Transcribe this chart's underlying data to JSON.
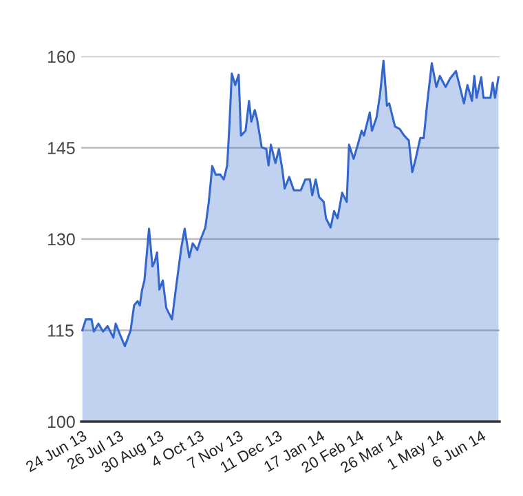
{
  "chart_data": {
    "type": "area",
    "x": [
      "2013-06-24",
      "2013-06-27",
      "2013-07-02",
      "2013-07-04",
      "2013-07-08",
      "2013-07-12",
      "2013-07-16",
      "2013-07-21",
      "2013-07-23",
      "2013-07-27",
      "2013-07-31",
      "2013-08-05",
      "2013-08-08",
      "2013-08-11",
      "2013-08-13",
      "2013-08-15",
      "2013-08-17",
      "2013-08-21",
      "2013-08-24",
      "2013-08-26",
      "2013-08-28",
      "2013-08-30",
      "2013-09-02",
      "2013-09-05",
      "2013-09-10",
      "2013-09-13",
      "2013-09-18",
      "2013-09-21",
      "2013-09-25",
      "2013-09-28",
      "2013-10-02",
      "2013-10-05",
      "2013-10-09",
      "2013-10-12",
      "2013-10-15",
      "2013-10-18",
      "2013-10-22",
      "2013-10-25",
      "2013-10-28",
      "2013-10-30",
      "2013-11-01",
      "2013-11-04",
      "2013-11-07",
      "2013-11-09",
      "2013-11-13",
      "2013-11-16",
      "2013-11-18",
      "2013-11-21",
      "2013-11-23",
      "2013-11-27",
      "2013-12-01",
      "2013-12-03",
      "2013-12-05",
      "2013-12-09",
      "2013-12-12",
      "2013-12-15",
      "2013-12-17",
      "2013-12-21",
      "2013-12-25",
      "2013-12-31",
      "2014-01-04",
      "2014-01-08",
      "2014-01-10",
      "2014-01-13",
      "2014-01-16",
      "2014-01-20",
      "2014-01-22",
      "2014-01-26",
      "2014-01-29",
      "2014-02-01",
      "2014-02-05",
      "2014-02-09",
      "2014-02-11",
      "2014-02-15",
      "2014-02-18",
      "2014-02-22",
      "2014-02-24",
      "2014-03-01",
      "2014-03-03",
      "2014-03-07",
      "2014-03-10",
      "2014-03-13",
      "2014-03-16",
      "2014-03-18",
      "2014-03-23",
      "2014-03-27",
      "2014-03-31",
      "2014-04-04",
      "2014-04-07",
      "2014-04-10",
      "2014-04-14",
      "2014-04-17",
      "2014-04-20",
      "2014-04-24",
      "2014-04-28",
      "2014-05-01",
      "2014-05-06",
      "2014-05-10",
      "2014-05-15",
      "2014-05-19",
      "2014-05-22",
      "2014-05-25",
      "2014-05-29",
      "2014-05-31",
      "2014-06-02",
      "2014-06-06",
      "2014-06-08",
      "2014-06-14",
      "2014-06-16",
      "2014-06-18",
      "2014-06-21"
    ],
    "series": [
      {
        "color": "#3366cc",
        "values": [
          115,
          116.8,
          116.8,
          114.8,
          116.1,
          114.8,
          115.7,
          113.8,
          116.1,
          114.2,
          112.4,
          115,
          119.1,
          119.8,
          119.1,
          121.7,
          123.2,
          131.7,
          125.5,
          126.3,
          127.8,
          121.7,
          123.2,
          118.7,
          116.8,
          121.3,
          128.5,
          131.7,
          127,
          129.3,
          128.2,
          130,
          131.9,
          136.1,
          142,
          140.6,
          140.6,
          139.8,
          142.1,
          148.9,
          157.2,
          155.3,
          157,
          147,
          147.8,
          152.7,
          149.3,
          151.2,
          149.7,
          145.1,
          144.8,
          142.1,
          145.5,
          142.5,
          144.8,
          141.4,
          138.3,
          140.2,
          138,
          138,
          139.8,
          139.8,
          137.2,
          139.8,
          136.9,
          136.1,
          133.4,
          131.9,
          134.6,
          133.4,
          137.6,
          136.1,
          145.5,
          143.2,
          145.1,
          147.8,
          147,
          150.8,
          147.8,
          150,
          153.8,
          159.3,
          151.9,
          152.3,
          148.5,
          148.1,
          147,
          146.2,
          141,
          143.2,
          146.6,
          146.6,
          152.3,
          158.9,
          155,
          156.8,
          155,
          156.4,
          157.6,
          154.6,
          152.3,
          155.3,
          152.7,
          156.8,
          153.2,
          156.6,
          153.2,
          153.2,
          155.7,
          153.2,
          156.6
        ]
      }
    ],
    "xlim": [
      "2013-06-23",
      "2014-06-22"
    ],
    "xticks": [
      {
        "value": "2013-06-24",
        "label": "24 Jun 13"
      },
      {
        "value": "2013-07-26",
        "label": "26 Jul 13"
      },
      {
        "value": "2013-08-30",
        "label": "30 Aug 13"
      },
      {
        "value": "2013-10-04",
        "label": "4 Oct 13"
      },
      {
        "value": "2013-11-07",
        "label": "7 Nov 13"
      },
      {
        "value": "2013-12-11",
        "label": "11 Dec 13"
      },
      {
        "value": "2014-01-17",
        "label": "17 Jan 14"
      },
      {
        "value": "2014-02-20",
        "label": "20 Feb 14"
      },
      {
        "value": "2014-03-26",
        "label": "26 Mar 14"
      },
      {
        "value": "2014-05-01",
        "label": "1 May 14"
      },
      {
        "value": "2014-06-06",
        "label": "6 Jun 14"
      }
    ],
    "ylim": [
      100,
      160
    ],
    "yticks": [
      100,
      115,
      130,
      145,
      160
    ],
    "grid": "y",
    "marker": "none",
    "line_style": "solid"
  }
}
